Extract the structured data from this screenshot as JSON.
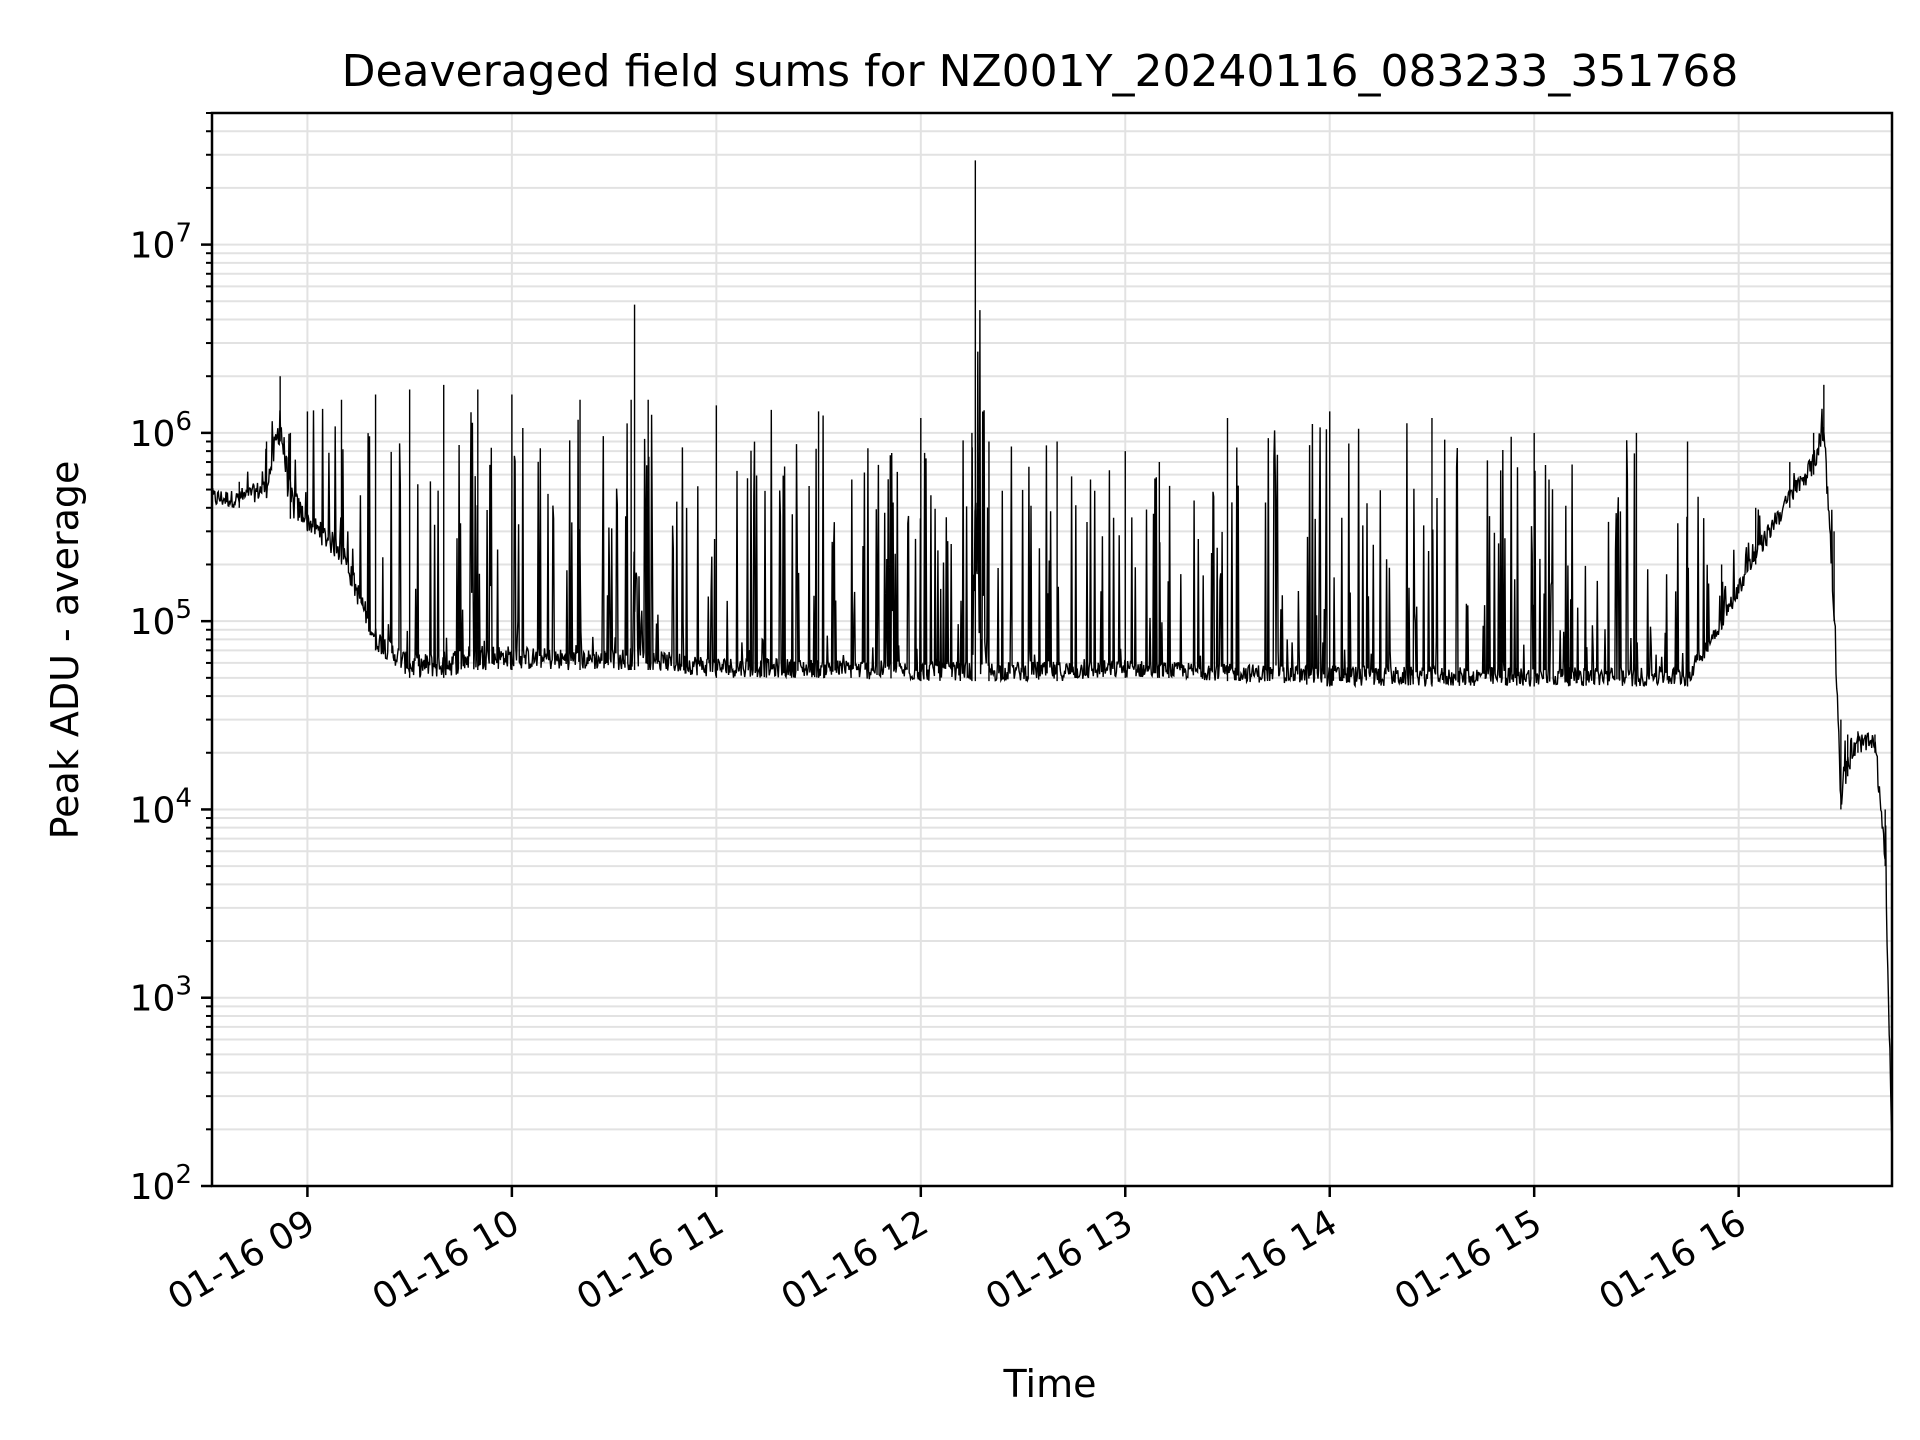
{
  "chart_data": {
    "type": "line",
    "title": "Deaveraged field sums for NZ001Y_20240116_083233_351768",
    "xlabel": "Time",
    "ylabel": "Peak ADU - average",
    "yscale": "log",
    "ylim": [
      100,
      50000000
    ],
    "xlim": [
      "2024-01-16 08:32",
      "2024-01-16 16:45"
    ],
    "grid": true,
    "legend": "none",
    "line_color": "#000000",
    "x_ticks": [
      "01-16 09",
      "01-16 10",
      "01-16 11",
      "01-16 12",
      "01-16 13",
      "01-16 14",
      "01-16 15",
      "01-16 16"
    ],
    "y_ticks": [
      {
        "value": 100,
        "base": "10",
        "exp": "2"
      },
      {
        "value": 1000,
        "base": "10",
        "exp": "3"
      },
      {
        "value": 10000,
        "base": "10",
        "exp": "4"
      },
      {
        "value": 100000,
        "base": "10",
        "exp": "5"
      },
      {
        "value": 1000000,
        "base": "10",
        "exp": "6"
      },
      {
        "value": 10000000,
        "base": "10",
        "exp": "7"
      }
    ],
    "series": [
      {
        "x": [
          "2024-01-16 08:32",
          "2024-01-16 08:40",
          "2024-01-16 08:48",
          "2024-01-16 08:52",
          "2024-01-16 08:55",
          "2024-01-16 09:00",
          "2024-01-16 09:10",
          "2024-01-16 09:20",
          "2024-01-16 09:30",
          "2024-01-16 09:40",
          "2024-01-16 09:50",
          "2024-01-16 10:00",
          "2024-01-16 10:20",
          "2024-01-16 10:35",
          "2024-01-16 10:36",
          "2024-01-16 10:40",
          "2024-01-16 11:00",
          "2024-01-16 11:30",
          "2024-01-16 12:00",
          "2024-01-16 12:15",
          "2024-01-16 12:16",
          "2024-01-16 12:20",
          "2024-01-16 12:40",
          "2024-01-16 13:00",
          "2024-01-16 13:10",
          "2024-01-16 13:30",
          "2024-01-16 14:00",
          "2024-01-16 14:30",
          "2024-01-16 15:00",
          "2024-01-16 15:30",
          "2024-01-16 15:45",
          "2024-01-16 15:55",
          "2024-01-16 16:05",
          "2024-01-16 16:15",
          "2024-01-16 16:22",
          "2024-01-16 16:25",
          "2024-01-16 16:28",
          "2024-01-16 16:30",
          "2024-01-16 16:32",
          "2024-01-16 16:35",
          "2024-01-16 16:40",
          "2024-01-16 16:43",
          "2024-01-16 16:45"
        ],
        "y": [
          500000,
          450000,
          600000,
          2000000,
          800000,
          400000,
          300000,
          100000,
          70000,
          80000,
          90000,
          80000,
          70000,
          75000,
          4800000,
          70000,
          65000,
          60000,
          60000,
          60000,
          28000000,
          60000,
          60000,
          60000,
          55000,
          55000,
          60000,
          55000,
          55000,
          55000,
          55000,
          100000,
          250000,
          500000,
          800000,
          1500000,
          200000,
          15000,
          20000,
          25000,
          24000,
          5000,
          180
        ],
        "upper_envelope": [
          500000,
          550000,
          900000,
          2000000,
          1000000,
          1300000,
          1500000,
          1600000,
          1700000,
          1800000,
          1700000,
          1600000,
          1500000,
          1500000,
          4800000,
          1500000,
          1400000,
          1300000,
          1200000,
          1000000,
          28000000,
          900000,
          900000,
          800000,
          700000,
          1200000,
          1300000,
          1200000,
          1000000,
          1000000,
          900000,
          200000,
          400000,
          700000,
          1000000,
          1800000,
          300000,
          30000,
          25000,
          26000,
          25000,
          10000,
          1000
        ],
        "lower_envelope": [
          400000,
          400000,
          450000,
          900000,
          350000,
          300000,
          200000,
          70000,
          50000,
          50000,
          55000,
          55000,
          55000,
          55000,
          55000,
          55000,
          50000,
          50000,
          48000,
          48000,
          48000,
          48000,
          48000,
          50000,
          50000,
          48000,
          45000,
          45000,
          45000,
          45000,
          45000,
          90000,
          200000,
          400000,
          600000,
          900000,
          100000,
          10000,
          15000,
          20000,
          20000,
          5000,
          150
        ]
      }
    ]
  }
}
